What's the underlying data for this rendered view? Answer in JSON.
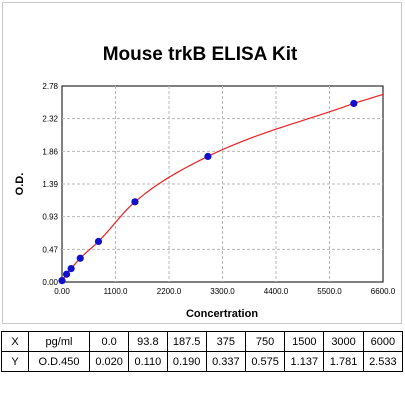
{
  "chart_data": {
    "type": "scatter",
    "title": "Mouse trkB ELISA Kit",
    "xlabel": "Concertration",
    "ylabel": "O.D.",
    "xlim": [
      0,
      6600
    ],
    "ylim": [
      0,
      2.78
    ],
    "x_ticks": [
      "0.00",
      "1100.0",
      "2200.0",
      "3300.0",
      "4400.0",
      "5500.0",
      "6600.0"
    ],
    "y_ticks": [
      "0.00",
      "0.47",
      "0.93",
      "1.39",
      "1.86",
      "2.32",
      "2.78"
    ],
    "grid": true,
    "series": [
      {
        "x": [
          0,
          93.8,
          187.5,
          375,
          750,
          1500,
          3000,
          6000
        ],
        "y": [
          0.02,
          0.11,
          0.19,
          0.337,
          0.575,
          1.137,
          1.781,
          2.533
        ],
        "point_color": "#1010cc",
        "curve_color": "#ee2020"
      }
    ]
  },
  "table": {
    "rows": [
      [
        "X",
        "pg/ml",
        "0.0",
        "93.8",
        "187.5",
        "375",
        "750",
        "1500",
        "3000",
        "6000"
      ],
      [
        "Y",
        "O.D.450",
        "0.020",
        "0.110",
        "0.190",
        "0.337",
        "0.575",
        "1.137",
        "1.781",
        "2.533"
      ]
    ]
  }
}
